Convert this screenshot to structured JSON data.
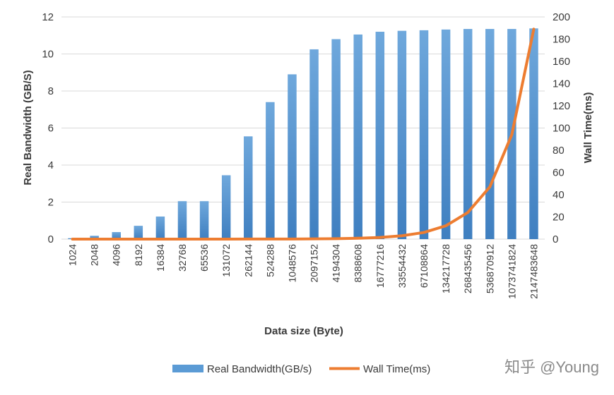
{
  "watermark": "知乎 @Young",
  "chart_data": {
    "type": "bar",
    "title": "",
    "xlabel": "Data size (Byte)",
    "ylabel": "Real Bandwidth (GB/S)",
    "y2label": "Wall Time(ms)",
    "ylim": [
      0,
      12
    ],
    "y2lim": [
      0,
      200
    ],
    "yticks": [
      "0",
      "2",
      "4",
      "6",
      "8",
      "10",
      "12"
    ],
    "y2ticks": [
      "0",
      "20",
      "40",
      "60",
      "80",
      "100",
      "120",
      "140",
      "160",
      "180",
      "200"
    ],
    "grid": true,
    "legend_position": "bottom",
    "categories": [
      "1024",
      "2048",
      "4096",
      "8192",
      "16384",
      "32768",
      "65536",
      "131072",
      "262144",
      "524288",
      "1048576",
      "2097152",
      "4194304",
      "8388608",
      "16777216",
      "33554432",
      "67108864",
      "134217728",
      "268435456",
      "536870912",
      "1073741824",
      "2147483648"
    ],
    "series": [
      {
        "name": "Real Bandwidth(GB/s)",
        "type": "bar",
        "axis": "left",
        "color": "#5b9bd5",
        "values": [
          0.05,
          0.18,
          0.38,
          0.72,
          1.22,
          2.05,
          2.05,
          3.45,
          5.55,
          7.4,
          8.9,
          10.25,
          10.8,
          11.05,
          11.2,
          11.25,
          11.28,
          11.32,
          11.35,
          11.35,
          11.35,
          11.38
        ]
      },
      {
        "name": "Wall Time(ms)",
        "type": "line",
        "axis": "right",
        "color": "#ed7d31",
        "values": [
          0,
          0,
          0,
          0,
          0,
          0,
          0,
          0,
          0.1,
          0.1,
          0.1,
          0.2,
          0.4,
          0.8,
          1.5,
          3,
          6,
          12,
          24,
          47,
          94,
          189
        ]
      }
    ]
  }
}
